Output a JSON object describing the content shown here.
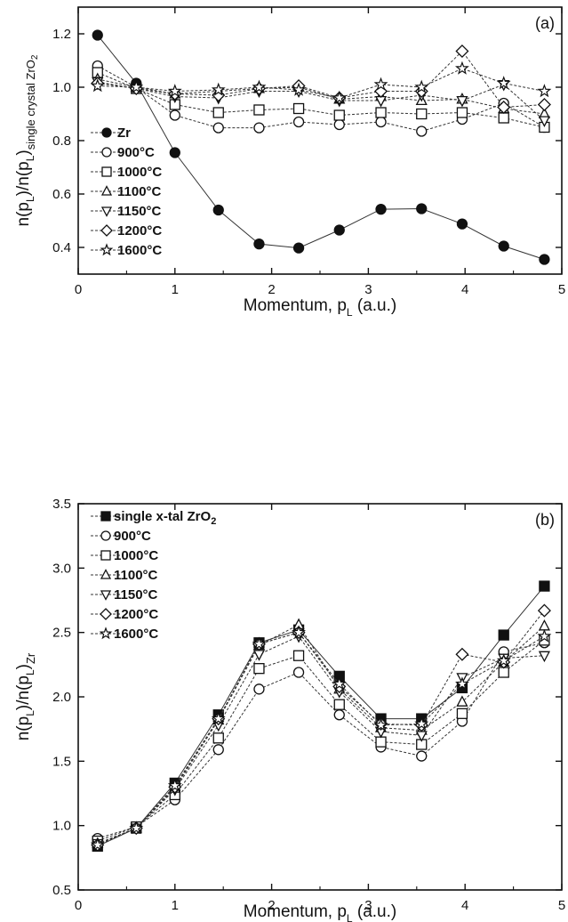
{
  "chart_data": [
    {
      "type": "line",
      "panel_label": "(a)",
      "xlabel": "Momentum, p",
      "xlabel_sub": "L",
      "xlabel_unit": " (a.u.)",
      "ylabel_parts": [
        "n(p",
        "L",
        ")/n(p",
        "L",
        ")",
        "single crystal ZrO",
        "2"
      ],
      "xlim": [
        0,
        5
      ],
      "ylim": [
        0.3,
        1.3
      ],
      "xticks": [
        "0",
        "1",
        "2",
        "3",
        "4",
        "5"
      ],
      "yticks": [
        "0.4",
        "0.6",
        "0.8",
        "1.0",
        "1.2"
      ],
      "legend_position": "lower-left",
      "x": [
        0.2,
        0.6,
        1.0,
        1.45,
        1.87,
        2.28,
        2.7,
        3.13,
        3.55,
        3.97,
        4.4,
        4.82
      ],
      "series": [
        {
          "name": "Zr",
          "marker": "filled-circle",
          "values": [
            1.195,
            1.015,
            0.755,
            0.54,
            0.413,
            0.398,
            0.465,
            0.543,
            0.545,
            0.488,
            0.405,
            0.355
          ]
        },
        {
          "name": "900°C",
          "marker": "circle",
          "values": [
            1.08,
            1.0,
            0.895,
            0.848,
            0.848,
            0.87,
            0.86,
            0.87,
            0.835,
            0.88,
            0.94,
            0.85
          ]
        },
        {
          "name": "1000°C",
          "marker": "square",
          "values": [
            1.055,
            0.995,
            0.935,
            0.905,
            0.915,
            0.92,
            0.895,
            0.905,
            0.9,
            0.905,
            0.885,
            0.85
          ]
        },
        {
          "name": "1100°C",
          "marker": "triangle-up",
          "values": [
            1.03,
            1.0,
            0.975,
            0.985,
            0.995,
            1.0,
            0.955,
            0.965,
            0.95,
            0.955,
            0.92,
            0.9
          ]
        },
        {
          "name": "1150°C",
          "marker": "triangle-down",
          "values": [
            1.02,
            0.995,
            0.965,
            0.96,
            0.985,
            0.985,
            0.95,
            0.95,
            0.97,
            0.95,
            1.01,
            0.875
          ]
        },
        {
          "name": "1200°C",
          "marker": "diamond",
          "values": [
            1.015,
            0.995,
            0.975,
            0.97,
            0.995,
            1.005,
            0.96,
            0.985,
            0.985,
            1.135,
            0.925,
            0.935
          ]
        },
        {
          "name": "1600°C",
          "marker": "star",
          "values": [
            1.005,
            1.0,
            0.985,
            0.99,
            1.0,
            0.99,
            0.96,
            1.01,
            1.0,
            1.07,
            1.015,
            0.985
          ]
        }
      ]
    },
    {
      "type": "line",
      "panel_label": "(b)",
      "xlabel": "Momentum, p",
      "xlabel_sub": "L",
      "xlabel_unit": " (a.u.)",
      "ylabel_parts": [
        "n(p",
        "L",
        ")/n(p",
        "L",
        ")",
        "Zr",
        ""
      ],
      "xlim": [
        0,
        5
      ],
      "ylim": [
        0.5,
        3.5
      ],
      "xticks": [
        "0",
        "1",
        "2",
        "3",
        "4",
        "5"
      ],
      "yticks": [
        "0.5",
        "1.0",
        "1.5",
        "2.0",
        "2.5",
        "3.0",
        "3.5"
      ],
      "legend_position": "top-left",
      "x": [
        0.2,
        0.6,
        1.0,
        1.45,
        1.87,
        2.28,
        2.7,
        3.13,
        3.55,
        3.97,
        4.4,
        4.82
      ],
      "series": [
        {
          "name": "single x-tal ZrO",
          "name_sub": "2",
          "marker": "filled-square",
          "values": [
            0.84,
            0.98,
            1.33,
            1.86,
            2.42,
            2.52,
            2.16,
            1.83,
            1.83,
            2.07,
            2.48,
            2.86
          ]
        },
        {
          "name": "900°C",
          "marker": "circle",
          "values": [
            0.9,
            0.99,
            1.2,
            1.59,
            2.06,
            2.19,
            1.86,
            1.61,
            1.54,
            1.81,
            2.35,
            2.42
          ]
        },
        {
          "name": "1000°C",
          "marker": "square",
          "values": [
            0.88,
            0.99,
            1.24,
            1.68,
            2.22,
            2.32,
            1.94,
            1.65,
            1.63,
            1.87,
            2.19,
            2.44
          ]
        },
        {
          "name": "1100°C",
          "marker": "triangle-up",
          "values": [
            0.86,
            0.98,
            1.29,
            1.82,
            2.4,
            2.56,
            2.06,
            1.76,
            1.74,
            1.96,
            2.27,
            2.55
          ]
        },
        {
          "name": "1150°C",
          "marker": "triangle-down",
          "values": [
            0.86,
            0.98,
            1.28,
            1.78,
            2.33,
            2.47,
            2.04,
            1.73,
            1.7,
            2.15,
            2.3,
            2.32
          ]
        },
        {
          "name": "1200°C",
          "marker": "diamond",
          "values": [
            0.85,
            0.98,
            1.3,
            1.83,
            2.41,
            2.5,
            2.08,
            1.79,
            1.78,
            2.33,
            2.27,
            2.67
          ]
        },
        {
          "name": "1600°C",
          "marker": "star",
          "values": [
            0.85,
            0.98,
            1.31,
            1.83,
            2.41,
            2.5,
            2.1,
            1.78,
            1.79,
            2.1,
            2.28,
            2.47
          ]
        }
      ]
    }
  ]
}
